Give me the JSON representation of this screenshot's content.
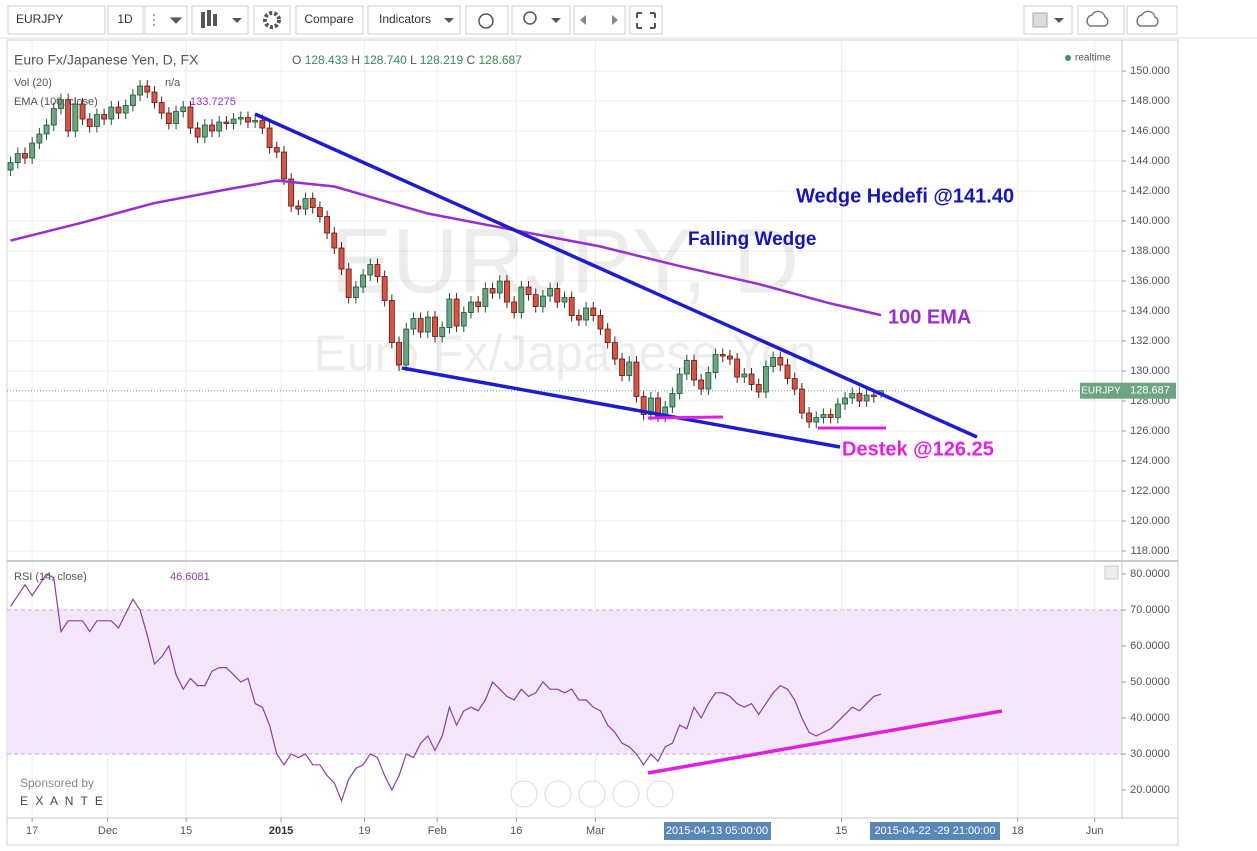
{
  "toolbar": {
    "symbol": "EURJPY",
    "interval": "1D",
    "compare": "Compare",
    "indicators": "Indicators"
  },
  "watermark": {
    "symbol": "EURJPY, D",
    "name": "Euro Fx/Japanese Yen"
  },
  "status": "realtime",
  "annotations": {
    "wedge_target": "Wedge Hedefi @141.40",
    "falling_wedge": "Falling Wedge",
    "ema_label": "100 EMA",
    "support": "Destek @126.25"
  },
  "time_labels": [
    "2015-04-13 05:00:00",
    "2015-04-22 -29 21:00:00"
  ],
  "sponsor": {
    "text": "Sponsored by",
    "brand": "E X A N T E"
  },
  "chart_data": [
    {
      "type": "candlestick",
      "title": "Euro Fx/Japanese Yen, D, FX",
      "ohlc_labels": [
        "O",
        "H",
        "L",
        "C"
      ],
      "ohlc_value_labels": [
        "128.433",
        "128.740",
        "128.219",
        "128.687"
      ],
      "last_price_label": "EURJPY",
      "up_color": "#6ba583",
      "down_color": "#d75442",
      "grid": true,
      "open": [
        143.4,
        143.9,
        144.5,
        144.2,
        145.2,
        145.8,
        146.4,
        147.5,
        148.1,
        146.0,
        147.8,
        146.8,
        146.3,
        147.1,
        146.8,
        147.6,
        147.2,
        147.7,
        148.4,
        149.0,
        148.6,
        147.9,
        147.2,
        146.5,
        147.3,
        147.6,
        146.2,
        145.6,
        146.4,
        146.0,
        146.6,
        146.5,
        146.8,
        146.9,
        146.6,
        146.7,
        146.2,
        144.9,
        144.6,
        142.8,
        141.0,
        140.8,
        141.5,
        140.9,
        140.3,
        139.2,
        138.2,
        136.8,
        134.9,
        135.6,
        136.4,
        137.1,
        136.3,
        134.7,
        131.9,
        130.4,
        132.8,
        133.5,
        132.6,
        133.6,
        132.3,
        132.9,
        134.8,
        133.0,
        133.9,
        134.6,
        134.3,
        135.5,
        135.2,
        136.0,
        134.6,
        133.9,
        135.6,
        135.1,
        134.3,
        135.0,
        135.5,
        134.6,
        134.9,
        133.7,
        133.4,
        134.2,
        133.7,
        132.8,
        131.9,
        130.8,
        129.7,
        130.6,
        128.3,
        127.1,
        128.2,
        127.0,
        127.6,
        128.5,
        129.8,
        130.7,
        129.4,
        128.8,
        129.9,
        131.1,
        131.0,
        130.8,
        129.6,
        129.8,
        129.1,
        128.6,
        130.3,
        130.9,
        130.4,
        129.5,
        128.8,
        127.2,
        126.6,
        126.9,
        127.1,
        126.9,
        127.8,
        128.2,
        128.5,
        128.0,
        128.4,
        128.433
      ],
      "high": [
        144.3,
        144.9,
        144.9,
        145.6,
        146.2,
        146.8,
        147.9,
        148.5,
        148.5,
        148.2,
        148.2,
        147.2,
        147.5,
        147.5,
        148.0,
        148.0,
        148.1,
        148.8,
        149.4,
        149.4,
        149.0,
        148.3,
        147.6,
        147.7,
        148.0,
        148.0,
        146.6,
        146.8,
        146.8,
        147.0,
        147.0,
        147.2,
        147.3,
        147.3,
        147.1,
        147.1,
        146.6,
        145.3,
        145.0,
        143.2,
        141.4,
        141.9,
        141.9,
        141.3,
        140.7,
        139.6,
        138.6,
        137.2,
        136.0,
        136.8,
        137.5,
        137.5,
        136.7,
        135.1,
        132.3,
        133.2,
        133.9,
        133.9,
        134.0,
        134.0,
        133.3,
        135.2,
        135.2,
        134.3,
        135.0,
        135.0,
        135.9,
        135.9,
        136.4,
        136.4,
        135.0,
        136.0,
        136.0,
        135.5,
        135.4,
        135.9,
        135.9,
        135.3,
        135.3,
        134.1,
        134.6,
        134.6,
        134.1,
        133.2,
        132.3,
        131.2,
        131.0,
        131.0,
        128.7,
        128.6,
        128.6,
        128.0,
        128.9,
        130.2,
        131.1,
        131.1,
        129.8,
        130.3,
        131.5,
        131.5,
        131.4,
        131.2,
        130.2,
        130.2,
        129.5,
        130.7,
        131.3,
        131.3,
        130.8,
        129.9,
        129.2,
        127.6,
        127.3,
        127.5,
        127.5,
        128.2,
        128.6,
        128.9,
        128.9,
        128.8,
        128.8,
        128.74
      ],
      "low": [
        143.0,
        143.5,
        143.8,
        143.8,
        144.8,
        145.4,
        146.0,
        147.1,
        145.6,
        145.6,
        146.4,
        145.9,
        145.9,
        146.4,
        146.4,
        146.8,
        146.8,
        147.3,
        148.0,
        148.2,
        147.5,
        146.8,
        146.1,
        146.1,
        146.9,
        145.8,
        145.2,
        145.2,
        145.6,
        145.6,
        146.1,
        146.1,
        146.4,
        146.2,
        146.2,
        145.8,
        144.5,
        144.2,
        142.4,
        140.6,
        140.4,
        140.4,
        140.5,
        139.9,
        138.8,
        137.8,
        136.4,
        134.5,
        134.5,
        135.2,
        136.0,
        135.9,
        134.3,
        131.5,
        130.0,
        130.0,
        132.4,
        132.2,
        132.2,
        131.9,
        131.9,
        132.5,
        132.6,
        132.6,
        133.5,
        133.9,
        133.9,
        134.8,
        134.8,
        134.2,
        133.5,
        133.5,
        134.7,
        133.9,
        133.9,
        134.6,
        134.2,
        134.2,
        133.3,
        133.0,
        133.0,
        133.3,
        132.4,
        131.5,
        130.4,
        129.3,
        129.3,
        127.9,
        126.7,
        126.7,
        126.6,
        126.6,
        127.2,
        128.1,
        129.4,
        129.0,
        128.4,
        128.4,
        129.5,
        130.6,
        130.4,
        129.2,
        129.2,
        128.7,
        128.2,
        128.2,
        129.9,
        130.0,
        129.1,
        128.4,
        126.8,
        126.2,
        126.2,
        126.5,
        126.5,
        126.5,
        127.4,
        127.8,
        127.6,
        127.6,
        127.9,
        128.219
      ],
      "close": [
        143.9,
        144.5,
        144.2,
        145.2,
        145.8,
        146.4,
        147.5,
        148.1,
        146.0,
        147.8,
        146.8,
        146.3,
        147.1,
        146.8,
        147.6,
        147.2,
        147.7,
        148.4,
        149.0,
        148.6,
        147.9,
        147.2,
        146.5,
        147.3,
        147.6,
        146.2,
        145.6,
        146.4,
        146.0,
        146.6,
        146.5,
        146.8,
        146.9,
        146.6,
        146.7,
        146.2,
        144.9,
        144.6,
        142.8,
        141.0,
        140.8,
        141.5,
        140.9,
        140.3,
        139.2,
        138.2,
        136.8,
        134.9,
        135.6,
        136.4,
        137.1,
        136.3,
        134.7,
        131.9,
        130.4,
        132.8,
        133.5,
        132.6,
        133.6,
        132.3,
        132.9,
        134.8,
        133.0,
        133.9,
        134.6,
        134.3,
        135.5,
        135.2,
        136.0,
        134.6,
        133.9,
        135.6,
        135.1,
        134.3,
        135.0,
        135.5,
        134.6,
        134.9,
        133.7,
        133.4,
        134.2,
        133.7,
        132.8,
        131.9,
        130.8,
        129.7,
        130.6,
        128.3,
        127.1,
        128.2,
        127.0,
        127.6,
        128.5,
        129.8,
        130.7,
        129.4,
        128.8,
        129.9,
        131.1,
        131.0,
        130.8,
        129.6,
        129.8,
        129.1,
        128.6,
        130.3,
        130.9,
        130.4,
        129.5,
        128.8,
        127.2,
        126.6,
        126.9,
        127.1,
        126.9,
        127.8,
        128.2,
        128.5,
        128.0,
        128.4,
        128.3,
        128.687
      ],
      "indicators": [
        {
          "name": "Vol (20)",
          "value_label": "n/a"
        },
        {
          "name": "EMA (100, close)",
          "color": "#9a2ecf",
          "x": [
            0,
            10,
            20,
            30,
            37,
            45,
            58,
            71,
            82,
            93,
            104,
            114,
            121
          ],
          "values": [
            138.7,
            139.9,
            141.2,
            142.1,
            142.7,
            142.3,
            140.5,
            139.3,
            138.3,
            137.0,
            135.8,
            134.5,
            133.7275
          ]
        }
      ],
      "xlim": [
        -0.5,
        154.5
      ],
      "xticks": [
        {
          "value": 3,
          "label": "17"
        },
        {
          "value": 13.5,
          "label": "Dec"
        },
        {
          "value": 24.4,
          "label": "15"
        },
        {
          "value": 37.6,
          "label": "2015",
          "bold": true
        },
        {
          "value": 49.2,
          "label": "19"
        },
        {
          "value": 59.3,
          "label": "Feb"
        },
        {
          "value": 70.3,
          "label": "16"
        },
        {
          "value": 81.3,
          "label": "Mar"
        },
        {
          "value": 115.5,
          "label": "15"
        },
        {
          "value": 140,
          "label": "18"
        },
        {
          "value": 150.7,
          "label": "Jun"
        }
      ],
      "ylim": [
        117.4,
        152.07
      ],
      "yticks": [
        {
          "value": 118,
          "label": "118.000"
        },
        {
          "value": 120,
          "label": "120.000"
        },
        {
          "value": 122,
          "label": "122.000"
        },
        {
          "value": 124,
          "label": "124.000"
        },
        {
          "value": 126,
          "label": "126.000"
        },
        {
          "value": 128,
          "label": "128.000"
        },
        {
          "value": 130,
          "label": "130.000"
        },
        {
          "value": 132,
          "label": "132.000"
        },
        {
          "value": 134,
          "label": "134.000"
        },
        {
          "value": 136,
          "label": "136.000"
        },
        {
          "value": 138,
          "label": "138.000"
        },
        {
          "value": 140,
          "label": "140.000"
        },
        {
          "value": 142,
          "label": "142.000"
        },
        {
          "value": 144,
          "label": "144.000"
        },
        {
          "value": 146,
          "label": "146.000"
        },
        {
          "value": 148,
          "label": "148.000"
        },
        {
          "value": 150,
          "label": "150.000"
        }
      ]
    },
    {
      "type": "line",
      "title": "RSI (14, close)",
      "color": "#8e3ca8",
      "band": [
        30,
        70
      ],
      "band_color": "#f4e6fb",
      "values": [
        71,
        74,
        77,
        74,
        77,
        80,
        79,
        64,
        67,
        67,
        67,
        64,
        67,
        67,
        67,
        65,
        69,
        73,
        70,
        63,
        55,
        57,
        60,
        52,
        48,
        51,
        49,
        49,
        53,
        54,
        54,
        52,
        50,
        51,
        44,
        43,
        38,
        30,
        27,
        30,
        29,
        30,
        27,
        27,
        24,
        22,
        17,
        23,
        26,
        27,
        30,
        29,
        24,
        20,
        24,
        30,
        29,
        33,
        35,
        31,
        35,
        43,
        38,
        42,
        43,
        42,
        45,
        50,
        48,
        46,
        45,
        48,
        46,
        47,
        50,
        48,
        48,
        47,
        48,
        45,
        45,
        43,
        42,
        38,
        36,
        33,
        32,
        30,
        27,
        30,
        28,
        32,
        33,
        38,
        37,
        43,
        40,
        44,
        47,
        47,
        46,
        44,
        43,
        44,
        41,
        44,
        47,
        49,
        48,
        45,
        40,
        36,
        35,
        36,
        37,
        39,
        41,
        43,
        42,
        44,
        46,
        46.6081
      ],
      "ylim": [
        12.22,
        83.33
      ],
      "yticks": [
        {
          "value": 20,
          "label": "20.0000"
        },
        {
          "value": 30,
          "label": "30.0000"
        },
        {
          "value": 40,
          "label": "40.0000"
        },
        {
          "value": 50,
          "label": "50.0000"
        },
        {
          "value": 60,
          "label": "60.0000"
        },
        {
          "value": 70,
          "label": "70.0000"
        },
        {
          "value": 80,
          "label": "80.0000"
        }
      ]
    }
  ]
}
